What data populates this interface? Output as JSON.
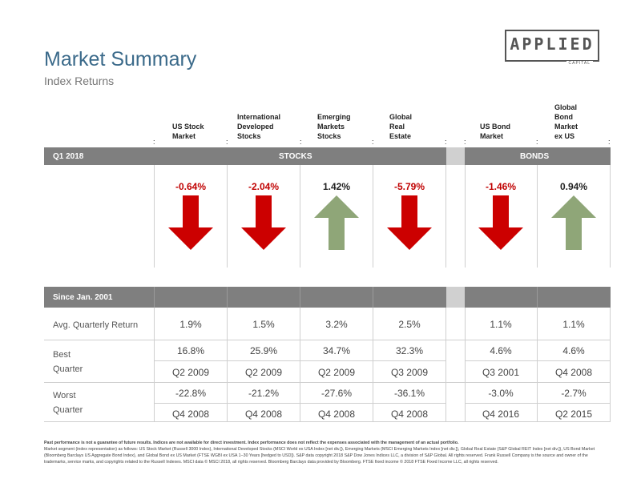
{
  "header": {
    "title": "Market Summary",
    "subtitle": "Index Returns",
    "logo_main": "APPLIED",
    "logo_sub": "CAPITAL"
  },
  "columns": [
    {
      "label_lines": [
        "US Stock",
        "Market"
      ]
    },
    {
      "label_lines": [
        "International",
        "Developed",
        "Stocks"
      ]
    },
    {
      "label_lines": [
        "Emerging",
        "Markets",
        "Stocks"
      ]
    },
    {
      "label_lines": [
        "Global",
        "Real",
        "Estate"
      ]
    },
    {
      "label_lines": [
        "US Bond",
        "Market"
      ]
    },
    {
      "label_lines": [
        "Global",
        "Bond",
        "Market",
        "ex US"
      ]
    }
  ],
  "top_bar": {
    "period": "Q1 2018",
    "stocks_label": "STOCKS",
    "bonds_label": "BONDS"
  },
  "returns": [
    {
      "value": "-0.64%",
      "direction": "down"
    },
    {
      "value": "-2.04%",
      "direction": "down"
    },
    {
      "value": "1.42%",
      "direction": "up"
    },
    {
      "value": "-5.79%",
      "direction": "down"
    },
    {
      "value": "-1.46%",
      "direction": "down"
    },
    {
      "value": "0.94%",
      "direction": "up"
    }
  ],
  "colors": {
    "down_arrow": "#cc0000",
    "up_arrow": "#8fa678",
    "bar": "#7f7f7f",
    "title": "#3b6a8a"
  },
  "since_bar": {
    "label": "Since Jan. 2001"
  },
  "stats": {
    "avg_label": "Avg. Quarterly Return",
    "avg": [
      "1.9%",
      "1.5%",
      "3.2%",
      "2.5%",
      "1.1%",
      "1.1%"
    ],
    "best_label_1": "Best",
    "best_label_2": "Quarter",
    "best_values": [
      "16.8%",
      "25.9%",
      "34.7%",
      "32.3%",
      "4.6%",
      "4.6%"
    ],
    "best_dates": [
      "Q2 2009",
      "Q2 2009",
      "Q2 2009",
      "Q3 2009",
      "Q3 2001",
      "Q4 2008"
    ],
    "worst_label_1": "Worst",
    "worst_label_2": "Quarter",
    "worst_values": [
      "-22.8%",
      "-21.2%",
      "-27.6%",
      "-36.1%",
      "-3.0%",
      "-2.7%"
    ],
    "worst_dates": [
      "Q4 2008",
      "Q4 2008",
      "Q4 2008",
      "Q4 2008",
      "Q4 2016",
      "Q2 2015"
    ]
  },
  "footnote": {
    "bold": "Past performance is not a guarantee of future results. Indices are not available for direct investment. Index performance does not reflect the expenses associated with the management of an actual portfolio.",
    "body": "Market segment (index representation) as follows: US Stock Market (Russell 3000 Index), International Developed Stocks (MSCI World ex USA Index [net div.]), Emerging Markets (MSCI Emerging Markets Index [net div.]), Global Real Estate (S&P Global REIT Index [net div.]), US Bond Market (Bloomberg Barclays US Aggregate Bond Index), and Global Bond ex US Market (FTSE WGBI ex USA 1−30 Years [hedged to USD]). S&P data copyright 2018 S&P Dow Jones Indices LLC, a division of S&P Global. All rights reserved. Frank Russell Company is the source and owner of the trademarks, service marks, and copyrights related to the Russell Indexes. MSCI data © MSCI 2018, all rights reserved. Bloomberg Barclays data provided by Bloomberg. FTSE fixed income © 2018 FTSE Fixed Income LLC, all rights reserved."
  }
}
